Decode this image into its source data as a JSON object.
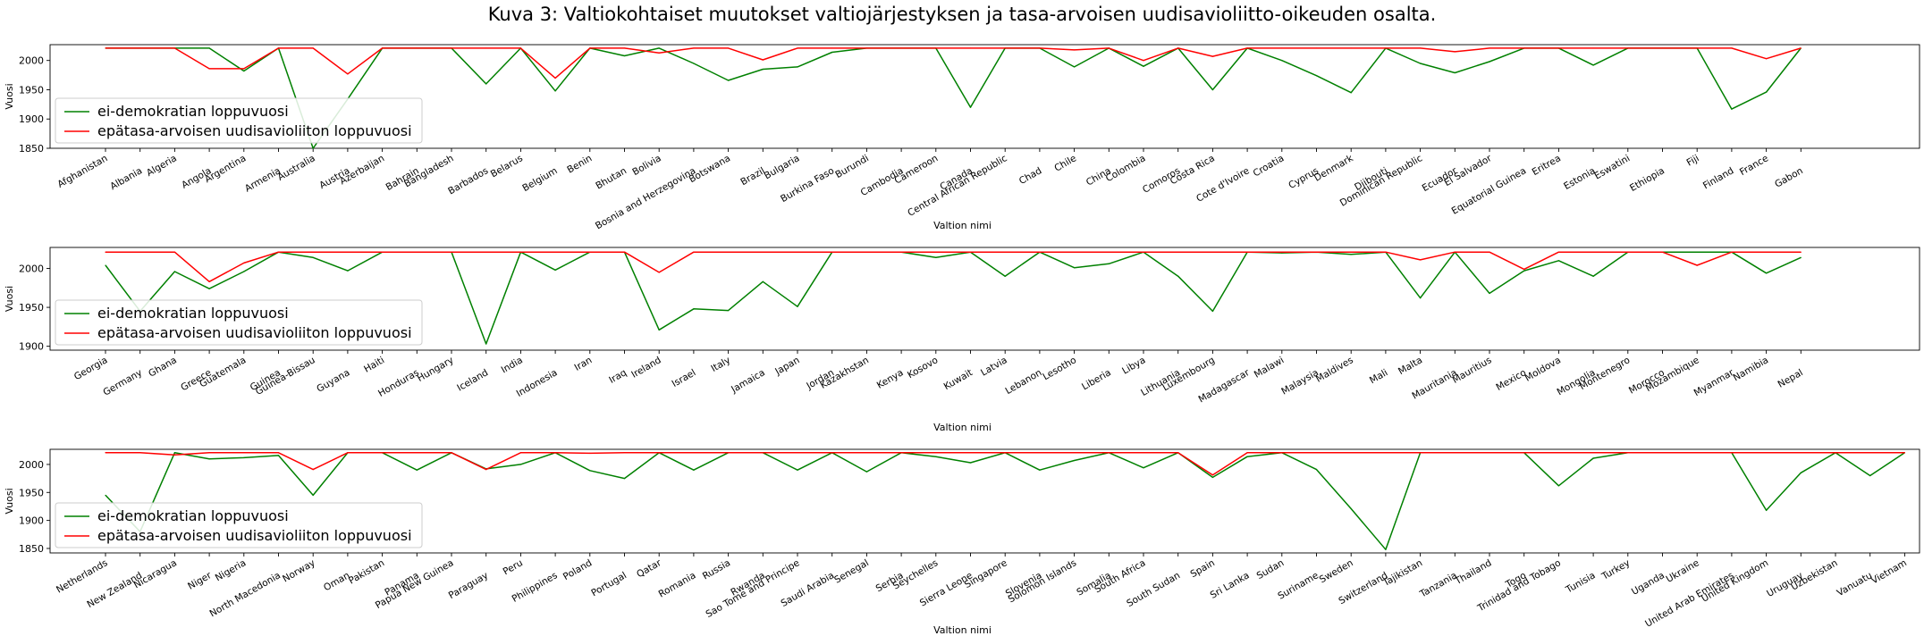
{
  "figure": {
    "title": "Kuva 3: Valtiokohtaiset muutokset valtiojärjestyksen ja tasa-arvoisen uudisavioliitto-oikeuden osalta."
  },
  "colors": {
    "green": "#008000",
    "red": "#ff0000"
  },
  "chart_data": [
    {
      "type": "line",
      "xlabel": "Valtion nimi",
      "ylabel": "Vuosi",
      "ylim": [
        1850,
        2027
      ],
      "yticks": [
        1850,
        1900,
        1950,
        2000
      ],
      "legend": "lower-left",
      "grid": false,
      "categories": [
        "Afghanistan",
        "Albania",
        "Algeria",
        "Angola",
        "Argentina",
        "Armenia",
        "Australia",
        "Austria",
        "Azerbaijan",
        "Bahrain",
        "Bangladesh",
        "Barbados",
        "Belarus",
        "Belgium",
        "Benin",
        "Bhutan",
        "Bolivia",
        "Bosnia and Herzegovina",
        "Botswana",
        "Brazil",
        "Bulgaria",
        "Burkina Faso",
        "Burundi",
        "Cambodia",
        "Cameroon",
        "Canada",
        "Central African Republic",
        "Chad",
        "Chile",
        "China",
        "Colombia",
        "Comoros",
        "Costa Rica",
        "Cote d'Ivoire",
        "Croatia",
        "Cyprus",
        "Denmark",
        "Djibouti",
        "Dominican Republic",
        "Ecuador",
        "El Salvador",
        "Equatorial Guinea",
        "Eritrea",
        "Estonia",
        "Eswatini",
        "Ethiopia",
        "Fiji",
        "Finland",
        "France",
        "Gabon"
      ],
      "series": [
        {
          "name": "ei-demokratian loppuvuosi",
          "color": "#008000",
          "values": [
            2021,
            2021,
            2021,
            2021,
            1982,
            2021,
            1850,
            1934,
            2021,
            2021,
            2021,
            1960,
            2021,
            1948,
            2021,
            2008,
            2021,
            1995,
            1966,
            1985,
            1989,
            2014,
            2021,
            2021,
            2021,
            1920,
            2021,
            2021,
            1989,
            2021,
            1990,
            2021,
            1950,
            2021,
            2000,
            1974,
            1945,
            2021,
            1995,
            1979,
            1998,
            2021,
            2021,
            1992,
            2021,
            2021,
            2021,
            1917,
            1946,
            2021
          ]
        },
        {
          "name": "epätasa-arvoisen uudisavioliiton loppuvuosi",
          "color": "#ff0000",
          "values": [
            2021,
            2021,
            2021,
            1986,
            1986,
            2021,
            2021,
            1977,
            2021,
            2021,
            2021,
            2021,
            2021,
            1970,
            2021,
            2021,
            2013,
            2021,
            2021,
            2001,
            2021,
            2021,
            2021,
            2021,
            2021,
            2021,
            2021,
            2021,
            2018,
            2021,
            2000,
            2021,
            2007,
            2021,
            2021,
            2021,
            2021,
            2021,
            2021,
            2015,
            2021,
            2021,
            2021,
            2021,
            2021,
            2021,
            2021,
            2021,
            2003,
            2021
          ]
        }
      ]
    },
    {
      "type": "line",
      "xlabel": "Valtion nimi",
      "ylabel": "Vuosi",
      "ylim": [
        1895,
        2027
      ],
      "yticks": [
        1900,
        1950,
        2000
      ],
      "legend": "lower-left",
      "grid": false,
      "categories": [
        "Georgia",
        "Germany",
        "Ghana",
        "Greece",
        "Guatemala",
        "Guinea",
        "Guinea-Bissau",
        "Guyana",
        "Haiti",
        "Honduras",
        "Hungary",
        "Iceland",
        "India",
        "Indonesia",
        "Iran",
        "Iraq",
        "Ireland",
        "Israel",
        "Italy",
        "Jamaica",
        "Japan",
        "Jordan",
        "Kazakhstan",
        "Kenya",
        "Kosovo",
        "Kuwait",
        "Latvia",
        "Lebanon",
        "Lesotho",
        "Liberia",
        "Libya",
        "Lithuania",
        "Luxembourg",
        "Madagascar",
        "Malawi",
        "Malaysia",
        "Maldives",
        "Mali",
        "Malta",
        "Mauritania",
        "Mauritius",
        "Mexico",
        "Moldova",
        "Mongolia",
        "Montenegro",
        "Morocco",
        "Mozambique",
        "Myanmar",
        "Namibia",
        "Nepal"
      ],
      "series": [
        {
          "name": "ei-demokratian loppuvuosi",
          "color": "#008000",
          "values": [
            2004,
            1945,
            1996,
            1974,
            1996,
            2021,
            2014,
            1997,
            2021,
            2021,
            2021,
            1903,
            2021,
            1998,
            2021,
            2021,
            1921,
            1948,
            1946,
            1983,
            1951,
            2021,
            2021,
            2021,
            2014,
            2021,
            1990,
            2021,
            2001,
            2006,
            2021,
            1990,
            1945,
            2021,
            2020,
            2021,
            2018,
            2021,
            1962,
            2021,
            1968,
            1997,
            2010,
            1990,
            2021,
            2021,
            2021,
            2021,
            1994,
            2014
          ]
        },
        {
          "name": "epätasa-arvoisen uudisavioliiton loppuvuosi",
          "color": "#ff0000",
          "values": [
            2021,
            2021,
            2021,
            1983,
            2007,
            2021,
            2021,
            2021,
            2021,
            2021,
            2021,
            2021,
            2021,
            2021,
            2021,
            2021,
            1995,
            2021,
            2021,
            2021,
            2021,
            2021,
            2021,
            2021,
            2021,
            2021,
            2021,
            2021,
            2021,
            2021,
            2021,
            2021,
            2021,
            2021,
            2021,
            2021,
            2021,
            2021,
            2011,
            2021,
            2021,
            1999,
            2021,
            2021,
            2021,
            2021,
            2004,
            2021,
            2021,
            2021
          ]
        }
      ]
    },
    {
      "type": "line",
      "xlabel": "Valtion nimi",
      "ylabel": "Vuosi",
      "ylim": [
        1842,
        2027
      ],
      "yticks": [
        1850,
        1900,
        1950,
        2000
      ],
      "legend": "lower-left",
      "grid": false,
      "categories": [
        "Netherlands",
        "New Zealand",
        "Nicaragua",
        "Niger",
        "Nigeria",
        "North Macedonia",
        "Norway",
        "Oman",
        "Pakistan",
        "Panama",
        "Papua New Guinea",
        "Paraguay",
        "Peru",
        "Philippines",
        "Poland",
        "Portugal",
        "Qatar",
        "Romania",
        "Russia",
        "Rwanda",
        "Sao Tome and Principe",
        "Saudi Arabia",
        "Senegal",
        "Serbia",
        "Seychelles",
        "Sierra Leone",
        "Singapore",
        "Slovenia",
        "Solomon Islands",
        "Somalia",
        "South Africa",
        "South Sudan",
        "Spain",
        "Sri Lanka",
        "Sudan",
        "Suriname",
        "Sweden",
        "Switzerland",
        "Tajikistan",
        "Tanzania",
        "Thailand",
        "Togo",
        "Trinidad and Tobago",
        "Tunisia",
        "Turkey",
        "Uganda",
        "Ukraine",
        "United Arab Emirates",
        "United Kingdom",
        "Uruguay",
        "Uzbekistan",
        "Vanuatu",
        "Vietnam"
      ],
      "series": [
        {
          "name": "ei-demokratian loppuvuosi",
          "color": "#008000",
          "values": [
            1945,
            1880,
            2021,
            2010,
            2012,
            2016,
            1945,
            2021,
            2021,
            1990,
            2021,
            1992,
            2000,
            2021,
            1989,
            1975,
            2021,
            1990,
            2021,
            2021,
            1990,
            2021,
            1987,
            2021,
            2014,
            2003,
            2021,
            1990,
            2007,
            2021,
            1994,
            2021,
            1977,
            2014,
            2021,
            1991,
            1921,
            1848,
            2021,
            2021,
            2021,
            2021,
            1962,
            2011,
            2021,
            2021,
            2021,
            2021,
            1918,
            1985,
            2021,
            1980,
            2021
          ]
        },
        {
          "name": "epätasa-arvoisen uudisavioliiton loppuvuosi",
          "color": "#ff0000",
          "values": [
            2021,
            2021,
            2017,
            2021,
            2021,
            2021,
            1991,
            2021,
            2021,
            2021,
            2021,
            1991,
            2021,
            2021,
            2020,
            2021,
            2021,
            2021,
            2021,
            2021,
            2021,
            2021,
            2021,
            2021,
            2021,
            2021,
            2021,
            2021,
            2021,
            2021,
            2021,
            2021,
            1981,
            2021,
            2021,
            2021,
            2021,
            2021,
            2021,
            2021,
            2021,
            2021,
            2021,
            2021,
            2021,
            2021,
            2021,
            2021,
            2021,
            2021,
            2021,
            2021,
            2021
          ]
        }
      ]
    }
  ]
}
